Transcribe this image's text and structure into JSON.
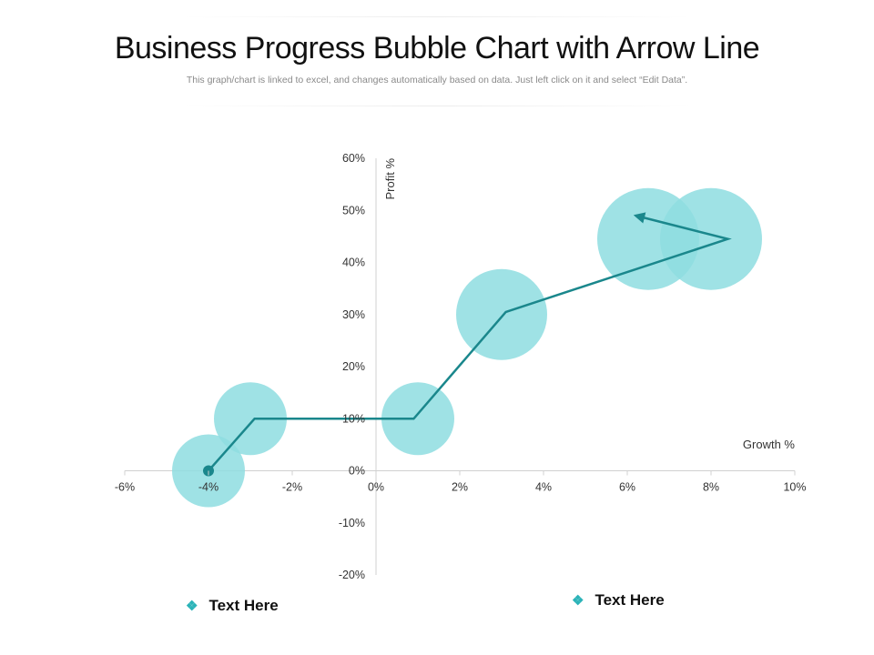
{
  "header": {
    "title": "Business Progress Bubble Chart with Arrow Line",
    "subtitle": "This graph/chart is linked to excel, and changes automatically based on data. Just left click on it and select “Edit Data”."
  },
  "chart_data": {
    "type": "scatter",
    "xlabel": "Growth %",
    "ylabel": "Profit %",
    "xlim": [
      -6,
      10
    ],
    "ylim": [
      -20,
      60
    ],
    "x_ticks": [
      "-6%",
      "-4%",
      "-2%",
      "0%",
      "2%",
      "4%",
      "6%",
      "8%",
      "10%"
    ],
    "y_ticks": [
      "60%",
      "50%",
      "40%",
      "30%",
      "20%",
      "10%",
      "0%",
      "-10%",
      "-20%"
    ],
    "bubbles": [
      {
        "x": -4,
        "y": 0,
        "size": 1.0
      },
      {
        "x": -3,
        "y": 10,
        "size": 1.0
      },
      {
        "x": 1,
        "y": 10,
        "size": 1.0
      },
      {
        "x": 3,
        "y": 30,
        "size": 1.25
      },
      {
        "x": 6.5,
        "y": 44.5,
        "size": 1.4
      },
      {
        "x": 8,
        "y": 44.5,
        "size": 1.4
      }
    ],
    "arrow_line": [
      {
        "x": -4,
        "y": 0
      },
      {
        "x": -2.9,
        "y": 10
      },
      {
        "x": 0.9,
        "y": 10
      },
      {
        "x": 3.1,
        "y": 30.5
      },
      {
        "x": 8.4,
        "y": 44.5
      },
      {
        "x": 6.2,
        "y": 49
      }
    ],
    "colors": {
      "bubble": "#8edde0",
      "line": "#1a878c",
      "axis": "#d0d0d0"
    }
  },
  "legend": {
    "items": [
      {
        "label": "Text Here"
      },
      {
        "label": "Text Here"
      }
    ],
    "marker_icon": "diamond-cluster-icon",
    "marker_glyph": "❖"
  }
}
